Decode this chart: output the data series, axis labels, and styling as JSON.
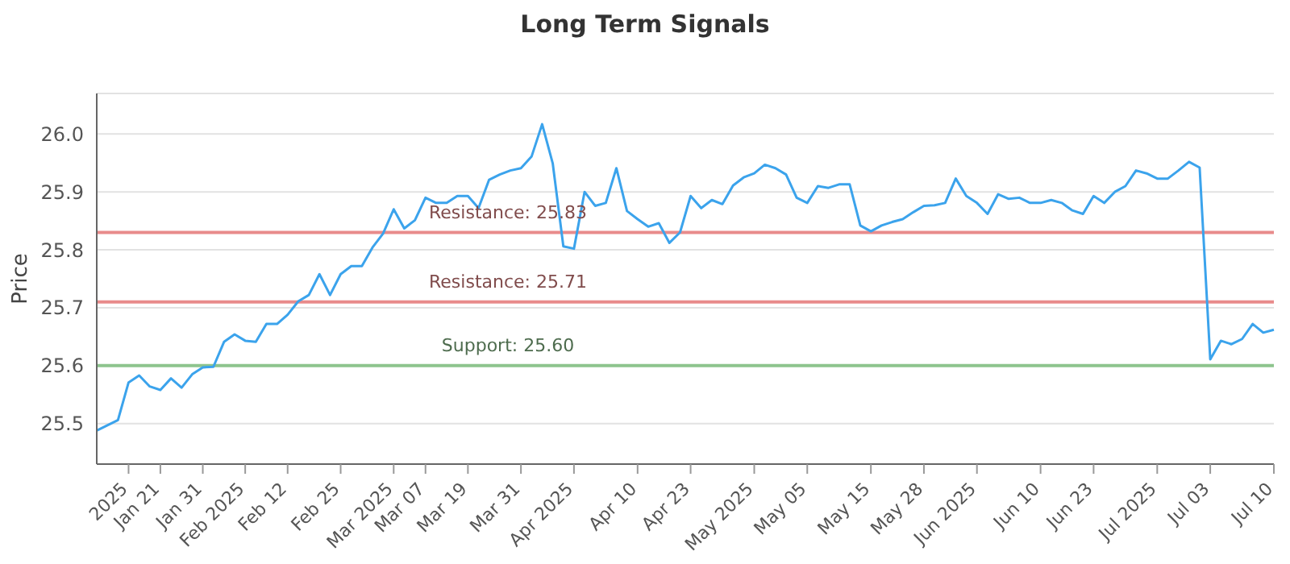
{
  "chart_data": {
    "type": "line",
    "title": "Long Term Signals",
    "ylabel": "Price",
    "categories": [
      null,
      null,
      null,
      "2025",
      null,
      null,
      "Jan 21",
      null,
      null,
      null,
      "Jan 31",
      null,
      null,
      null,
      "Feb 2025",
      null,
      null,
      null,
      "Feb 12",
      null,
      null,
      null,
      null,
      "Feb 25",
      null,
      null,
      null,
      null,
      "Mar 2025",
      null,
      null,
      "Mar 07",
      null,
      null,
      null,
      "Mar 19",
      null,
      null,
      null,
      null,
      "Mar 31",
      null,
      null,
      null,
      null,
      "Apr 2025",
      null,
      null,
      null,
      null,
      null,
      "Apr 10",
      null,
      null,
      null,
      null,
      "Apr 23",
      null,
      null,
      null,
      null,
      null,
      "May 2025",
      null,
      null,
      null,
      null,
      "May 05",
      null,
      null,
      null,
      null,
      null,
      "May 15",
      null,
      null,
      null,
      null,
      "May 28",
      null,
      null,
      null,
      null,
      "Jun 2025",
      null,
      null,
      null,
      null,
      null,
      "Jun 10",
      null,
      null,
      null,
      null,
      "Jun 23",
      null,
      null,
      null,
      null,
      null,
      "Jul 2025",
      null,
      null,
      null,
      null,
      "Jul 03",
      null,
      null,
      null,
      null,
      null,
      "Jul 10"
    ],
    "series": [
      {
        "color": "#3ba3ec",
        "values": [
          25.488,
          25.497,
          25.506,
          25.571,
          25.583,
          25.564,
          25.558,
          25.578,
          25.562,
          25.585,
          25.597,
          25.598,
          25.641,
          25.654,
          25.643,
          25.641,
          25.672,
          25.672,
          25.688,
          25.711,
          25.722,
          25.758,
          25.722,
          25.758,
          25.772,
          25.772,
          25.804,
          25.828,
          25.87,
          25.837,
          25.851,
          25.89,
          25.881,
          25.881,
          25.893,
          25.893,
          25.872,
          25.921,
          25.93,
          25.937,
          25.941,
          25.961,
          26.017,
          25.949,
          25.806,
          25.802,
          25.9,
          25.876,
          25.881,
          25.941,
          25.867,
          25.853,
          25.84,
          25.846,
          25.812,
          25.83,
          25.893,
          25.872,
          25.886,
          25.879,
          25.911,
          25.925,
          25.932,
          25.947,
          25.941,
          25.93,
          25.89,
          25.881,
          25.91,
          25.907,
          25.913,
          25.913,
          25.842,
          25.832,
          25.842,
          25.848,
          25.853,
          25.865,
          25.876,
          25.877,
          25.881,
          25.923,
          25.893,
          25.881,
          25.862,
          25.896,
          25.888,
          25.89,
          25.881,
          25.881,
          25.886,
          25.881,
          25.868,
          25.862,
          25.893,
          25.881,
          25.9,
          25.91,
          25.937,
          25.932,
          25.923,
          25.923,
          25.937,
          25.952,
          25.942,
          25.611,
          25.643,
          25.637,
          25.646,
          25.672,
          25.657,
          25.662
        ]
      }
    ],
    "ylim": [
      25.43,
      26.07
    ],
    "yticks": [
      25.5,
      25.6,
      25.7,
      25.8,
      25.9,
      {
        "value": 26.0,
        "label": "26.0"
      }
    ],
    "grid": "y",
    "marker": "none",
    "line_style": "solid",
    "ref_lines": [
      {
        "axis": "y",
        "value": 25.83,
        "label": "Resistance: 25.83",
        "color": "#e88b8b"
      },
      {
        "axis": "y",
        "value": 25.71,
        "label": "Resistance: 25.71",
        "color": "#e88b8b"
      },
      {
        "axis": "y",
        "value": 25.6,
        "label": "Support: 25.60",
        "color": "#8dc48d"
      }
    ]
  }
}
